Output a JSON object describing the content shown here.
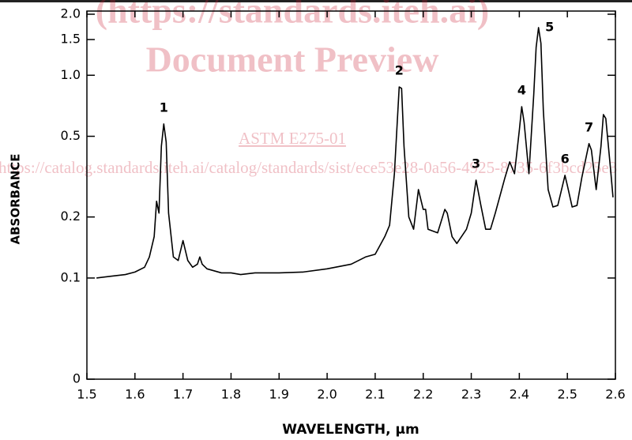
{
  "chart_data": {
    "type": "line",
    "xlabel": "WAVELENGTH, μm",
    "ylabel": "ABSORBANCE",
    "yscale": "log",
    "xlim": [
      1.5,
      2.6
    ],
    "ylim": [
      0.0317,
      2
    ],
    "xticks": [
      1.5,
      1.6,
      1.7,
      1.8,
      1.9,
      {
        "value": 2,
        "label": "2.0"
      },
      2.1,
      2.2,
      2.3,
      2.4,
      2.5,
      2.6
    ],
    "yticks": [
      {
        "value": 2,
        "label": "2.0"
      },
      1.5,
      {
        "value": 1,
        "label": "1.0"
      },
      0.5,
      0.2,
      0.1,
      0
    ],
    "series": [
      {
        "color": "#000000",
        "x": [
          1.52,
          1.55,
          1.58,
          1.6,
          1.62,
          1.63,
          1.64,
          1.645,
          1.65,
          1.655,
          1.66,
          1.665,
          1.67,
          1.68,
          1.69,
          1.7,
          1.71,
          1.72,
          1.73,
          1.735,
          1.74,
          1.75,
          1.78,
          1.8,
          1.82,
          1.85,
          1.9,
          1.95,
          2.0,
          2.05,
          2.08,
          2.1,
          2.12,
          2.13,
          2.14,
          2.15,
          2.155,
          2.16,
          2.17,
          2.18,
          2.19,
          2.2,
          2.205,
          2.21,
          2.23,
          2.245,
          2.25,
          2.26,
          2.27,
          2.29,
          2.3,
          2.31,
          2.32,
          2.33,
          2.34,
          2.35,
          2.37,
          2.38,
          2.39,
          2.4,
          2.405,
          2.41,
          2.42,
          2.43,
          2.435,
          2.44,
          2.445,
          2.45,
          2.46,
          2.47,
          2.48,
          2.49,
          2.495,
          2.5,
          2.51,
          2.52,
          2.53,
          2.545,
          2.55,
          2.56,
          2.57,
          2.575,
          2.58,
          2.59,
          2.595
        ],
        "values": [
          0.1,
          0.102,
          0.104,
          0.107,
          0.113,
          0.127,
          0.16,
          0.239,
          0.209,
          0.447,
          0.575,
          0.468,
          0.209,
          0.127,
          0.122,
          0.153,
          0.122,
          0.113,
          0.117,
          0.127,
          0.117,
          0.111,
          0.106,
          0.106,
          0.104,
          0.106,
          0.106,
          0.107,
          0.111,
          0.117,
          0.127,
          0.131,
          0.16,
          0.182,
          0.327,
          0.876,
          0.861,
          0.447,
          0.2,
          0.174,
          0.273,
          0.218,
          0.218,
          0.174,
          0.167,
          0.218,
          0.209,
          0.16,
          0.148,
          0.174,
          0.209,
          0.304,
          0.228,
          0.174,
          0.174,
          0.209,
          0.312,
          0.374,
          0.327,
          0.535,
          0.7,
          0.585,
          0.327,
          0.801,
          1.373,
          1.718,
          1.436,
          0.67,
          0.273,
          0.224,
          0.228,
          0.286,
          0.321,
          0.286,
          0.224,
          0.228,
          0.312,
          0.46,
          0.428,
          0.273,
          0.447,
          0.64,
          0.612,
          0.342,
          0.25
        ]
      }
    ],
    "annotations": [
      {
        "text": "1",
        "x": 1.66,
        "y": 0.575
      },
      {
        "text": "2",
        "x": 2.15,
        "y": 0.876
      },
      {
        "text": "3",
        "x": 2.31,
        "y": 0.304
      },
      {
        "text": "4",
        "x": 2.405,
        "y": 0.7
      },
      {
        "text": "5",
        "x": 2.44,
        "y": 1.718
      },
      {
        "text": "6",
        "x": 2.495,
        "y": 0.321
      },
      {
        "text": "7",
        "x": 2.545,
        "y": 0.46
      }
    ],
    "watermark": [
      "(https://standards.iteh.ai)",
      "Document Preview",
      "ASTM E275-01",
      "https://catalog.standards.iteh.ai/catalog/standards/sist/ece53e28-0a56-4925-8735-6f3bcd25e3"
    ]
  }
}
